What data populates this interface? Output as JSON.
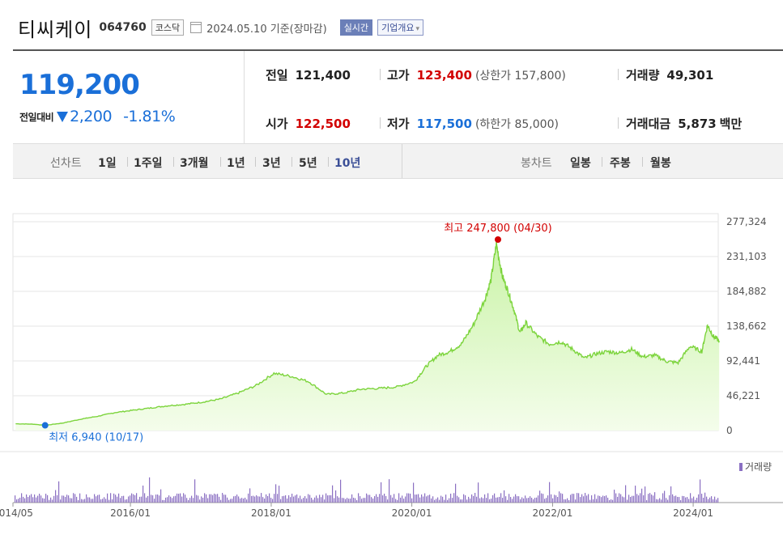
{
  "header": {
    "name": "티씨케이",
    "code": "064760",
    "market": "코스닥",
    "date": "2024.05.10",
    "date_suffix": "기준(장마감)",
    "realtime_label": "실시간",
    "overview_label": "기업개요",
    "overview_chevron": "▾"
  },
  "price": {
    "current": "119,200",
    "change_label": "전일대비",
    "change_amount": "2,200",
    "change_percent": "-1.81%",
    "rows": {
      "prev_close": {
        "label": "전일",
        "value": "121,400"
      },
      "high": {
        "label": "고가",
        "value": "123,400",
        "sub": "(상한가 157,800)"
      },
      "volume": {
        "label": "거래량",
        "value": "49,301"
      },
      "open": {
        "label": "시가",
        "value": "122,500"
      },
      "low": {
        "label": "저가",
        "value": "117,500",
        "sub": "(하한가 85,000)"
      },
      "turnover": {
        "label": "거래대금",
        "value": "5,873",
        "unit": "백만"
      }
    }
  },
  "periods": {
    "line_title": "선차트",
    "line_items": [
      "1일",
      "1주일",
      "3개월",
      "1년",
      "3년",
      "5년",
      "10년"
    ],
    "active": "10년",
    "candle_title": "봉차트",
    "candle_items": [
      "일봉",
      "주봉",
      "월봉"
    ]
  },
  "colors": {
    "line": "#7cd43c",
    "area_top": "#c9f3a6",
    "area_bottom": "#f4fdeb",
    "volume": "#8a6fc2",
    "high": "#d20000",
    "low": "#1a6fd8"
  },
  "chart_data": {
    "type": "area",
    "x": [
      "2014-05",
      "2014-08",
      "2014-10",
      "2015-01",
      "2015-04",
      "2015-07",
      "2015-10",
      "2016-01",
      "2016-04",
      "2016-07",
      "2016-10",
      "2017-01",
      "2017-04",
      "2017-07",
      "2017-10",
      "2018-01",
      "2018-04",
      "2018-07",
      "2018-10",
      "2019-01",
      "2019-04",
      "2019-07",
      "2019-10",
      "2020-01",
      "2020-03",
      "2020-05",
      "2020-07",
      "2020-09",
      "2020-11",
      "2021-01",
      "2021-02",
      "2021-03",
      "2021-04",
      "2021-05",
      "2021-06",
      "2021-07",
      "2021-08",
      "2021-10",
      "2021-12",
      "2022-02",
      "2022-04",
      "2022-06",
      "2022-08",
      "2022-10",
      "2022-12",
      "2023-02",
      "2023-04",
      "2023-06",
      "2023-08",
      "2023-10",
      "2023-12",
      "2024-02",
      "2024-03",
      "2024-04",
      "2024-05"
    ],
    "values": [
      9000,
      8500,
      6940,
      10000,
      15000,
      19000,
      24000,
      27000,
      30000,
      33000,
      35000,
      38000,
      42000,
      50000,
      60000,
      76000,
      72000,
      65000,
      48000,
      50000,
      55000,
      56000,
      58000,
      65000,
      85000,
      100000,
      105000,
      115000,
      140000,
      175000,
      200000,
      248000,
      205000,
      185000,
      160000,
      130000,
      143000,
      125000,
      115000,
      118000,
      108000,
      96000,
      102000,
      105000,
      103000,
      108000,
      98000,
      100000,
      92000,
      90000,
      112000,
      105000,
      140000,
      125000,
      119200
    ],
    "ylim": [
      0,
      277324
    ],
    "y_ticks": [
      "277,324",
      "231,103",
      "184,882",
      "138,662",
      "92,441",
      "46,221",
      "0"
    ],
    "x_ticks": [
      "2014/05",
      "2016/01",
      "2018/01",
      "2020/01",
      "2022/01",
      "2024/01"
    ],
    "high_annotation": "최고 247,800 (04/30)",
    "low_annotation": "최저 6,940 (10/17)",
    "volume_label": "거래량"
  }
}
